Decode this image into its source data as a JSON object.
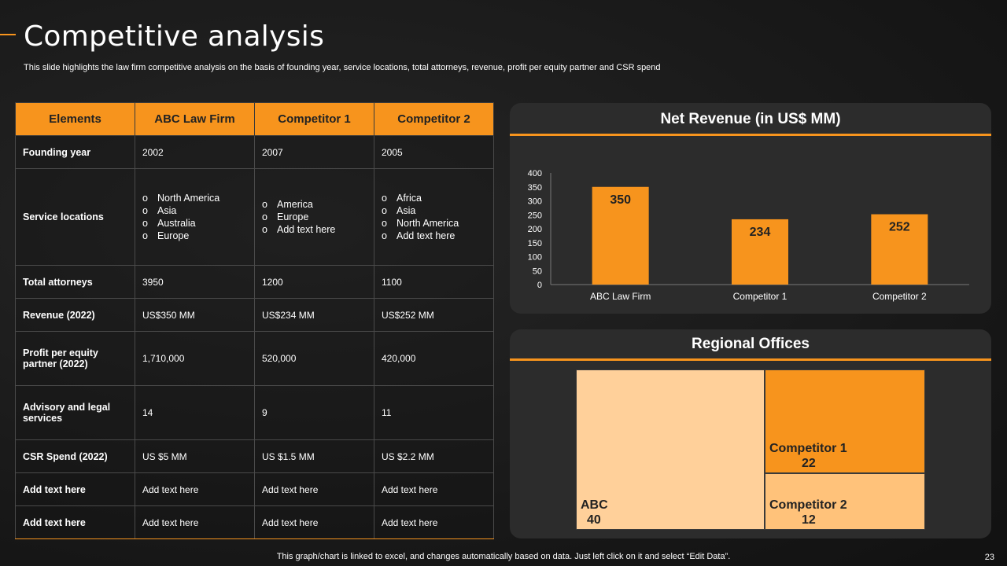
{
  "header": {
    "title": "Competitive analysis",
    "subtitle": "This slide highlights the law firm competitive analysis on the basis of founding year, service locations, total attorneys, revenue, profit per equity partner and CSR spend"
  },
  "table": {
    "headers": [
      "Elements",
      "ABC Law Firm",
      "Competitor 1",
      "Competitor 2"
    ],
    "rows": [
      {
        "label": "Founding year",
        "cells": [
          "2002",
          "2007",
          "2005"
        ]
      },
      {
        "label": "Total attorneys",
        "cells": [
          "3950",
          "1200",
          "1100"
        ]
      },
      {
        "label": "Revenue (2022)",
        "cells": [
          "US$350 MM",
          "US$234 MM",
          "US$252 MM"
        ]
      },
      {
        "label": "Profit per equity partner (2022)",
        "cells": [
          "1,710,000",
          "520,000",
          "420,000"
        ]
      },
      {
        "label": "Advisory  and legal services",
        "cells": [
          "14",
          "9",
          "11"
        ]
      },
      {
        "label": "CSR  Spend (2022)",
        "cells": [
          "US $5 MM",
          "US $1.5 MM",
          "US $2.2 MM"
        ]
      },
      {
        "label": "Add text here",
        "cells": [
          "Add text here",
          "Add text here",
          "Add text here"
        ]
      },
      {
        "label": "Add text here",
        "cells": [
          "Add text here",
          "Add text here",
          "Add text here"
        ]
      }
    ],
    "service_locations": {
      "label": "Service locations",
      "abc": [
        "North America",
        "Asia",
        "Australia",
        "Europe"
      ],
      "comp1": [
        "America",
        "Europe",
        "Add text here"
      ],
      "comp2": [
        "Africa",
        "Asia",
        "North America",
        "Add text here"
      ]
    }
  },
  "chart_data": [
    {
      "type": "bar",
      "title": "Net Revenue (in US$ MM)",
      "categories": [
        "ABC Law Firm",
        "Competitor 1",
        "Competitor 2"
      ],
      "values": [
        350,
        234,
        252
      ],
      "ylim": [
        0,
        400
      ],
      "yticks": [
        0,
        50,
        100,
        150,
        200,
        250,
        300,
        350,
        400
      ],
      "color": "#f7941d",
      "grid": false
    },
    {
      "type": "treemap",
      "title": "Regional Offices",
      "items": [
        {
          "name": "ABC",
          "value": 40,
          "color": "#ffd09a"
        },
        {
          "name": "Competitor 1",
          "value": 22,
          "color": "#f7941d"
        },
        {
          "name": "Competitor 2",
          "value": 12,
          "color": "#ffc27a"
        }
      ]
    }
  ],
  "footer": {
    "note": "This graph/chart is linked to excel,  and changes automatically based on data. Just left click on it and select “Edit Data”.",
    "page": "23"
  }
}
